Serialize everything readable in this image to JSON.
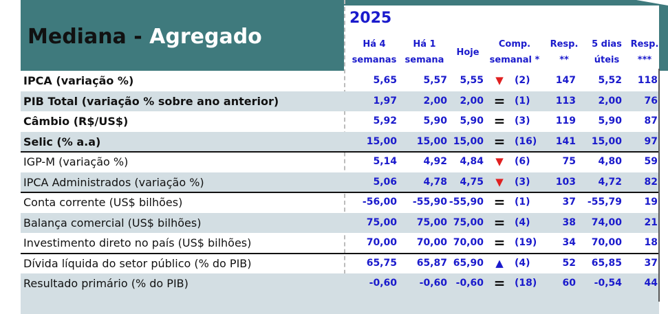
{
  "header": {
    "title_part1": "Mediana -",
    "title_part2": "Agregado",
    "year": "2025",
    "columns": [
      [
        "Há 4",
        "semanas"
      ],
      [
        "Há 1",
        "semana"
      ],
      [
        "Hoje"
      ],
      [
        "Comp.",
        "semanal *"
      ],
      [
        "Resp.",
        "**"
      ],
      [
        "5 dias",
        "úteis"
      ],
      [
        "Resp.",
        "***"
      ]
    ]
  },
  "table": {
    "rows": [
      [
        "IPCA (variação %)",
        "5,65",
        "5,57",
        "5,55",
        "▼",
        "(2)",
        "147",
        "5,52",
        "118"
      ],
      [
        "PIB Total (variação % sobre ano anterior)",
        "1,97",
        "2,00",
        "2,00",
        "=",
        "(1)",
        "113",
        "2,00",
        "76"
      ],
      [
        "Câmbio (R$/US$)",
        "5,92",
        "5,90",
        "5,90",
        "=",
        "(3)",
        "119",
        "5,90",
        "87"
      ],
      [
        "Selic (% a.a)",
        "15,00",
        "15,00",
        "15,00",
        "=",
        "(16)",
        "141",
        "15,00",
        "97"
      ],
      [
        "IGP-M (variação %)",
        "5,14",
        "4,92",
        "4,84",
        "▼",
        "(6)",
        "75",
        "4,80",
        "59"
      ],
      [
        "IPCA Administrados (variação %)",
        "5,06",
        "4,78",
        "4,75",
        "▼",
        "(3)",
        "103",
        "4,72",
        "82"
      ],
      [
        "Conta corrente (US$ bilhões)",
        "-56,00",
        "-55,90",
        "-55,90",
        "=",
        "(1)",
        "37",
        "-55,79",
        "19"
      ],
      [
        "Balança comercial (US$ bilhões)",
        "75,00",
        "75,00",
        "75,00",
        "=",
        "(4)",
        "38",
        "74,00",
        "21"
      ],
      [
        "Investimento direto no país (US$ bilhões)",
        "70,00",
        "70,00",
        "70,00",
        "=",
        "(19)",
        "34",
        "70,00",
        "18"
      ],
      [
        "Dívida líquida do setor público (% do PIB)",
        "65,75",
        "65,87",
        "65,90",
        "▲",
        "(4)",
        "52",
        "65,85",
        "37"
      ],
      [
        "Resultado primário (% do PIB)",
        "-0,60",
        "-0,60",
        "-0,60",
        "=",
        "(18)",
        "60",
        "-0,54",
        "44"
      ]
    ]
  }
}
